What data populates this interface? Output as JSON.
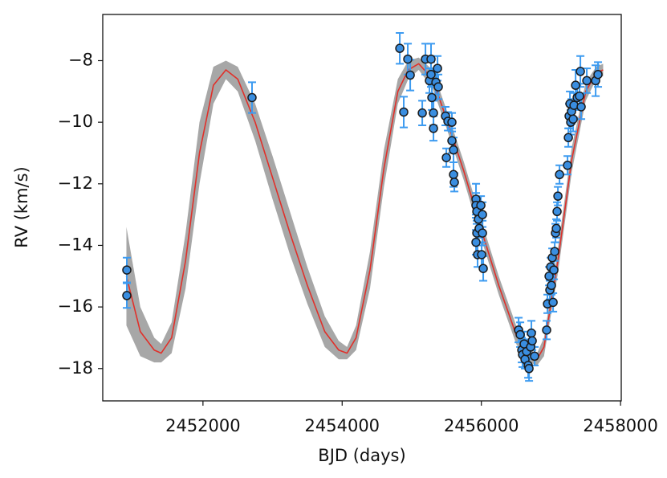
{
  "chart_data": {
    "type": "scatter",
    "xlabel": "BJD (days)",
    "ylabel": "RV (km/s)",
    "xlim": [
      2450560,
      2458010
    ],
    "ylim": [
      -19.05,
      -6.5
    ],
    "xticks": [
      2452000,
      2454000,
      2456000,
      2458000
    ],
    "yticks": [
      {
        "value": -8,
        "label": "−8"
      },
      {
        "value": -10,
        "label": "−10"
      },
      {
        "value": -12,
        "label": "−12"
      },
      {
        "value": -14,
        "label": "−14"
      },
      {
        "value": -16,
        "label": "−16"
      },
      {
        "value": -18,
        "label": "−18"
      }
    ],
    "model": {
      "color": "#e0302a",
      "band_color": "#8a8a8a",
      "x": [
        2450900,
        2451100,
        2451300,
        2451400,
        2451550,
        2451750,
        2451950,
        2452150,
        2452330,
        2452500,
        2452750,
        2453000,
        2453250,
        2453500,
        2453750,
        2453950,
        2454070,
        2454200,
        2454400,
        2454600,
        2454800,
        2454950,
        2455100,
        2455300,
        2455500,
        2455750,
        2456000,
        2456250,
        2456500,
        2456700,
        2456800,
        2456900,
        2457100,
        2457300,
        2457500,
        2457650,
        2457750
      ],
      "values": [
        -15.0,
        -16.8,
        -17.4,
        -17.5,
        -17.0,
        -14.5,
        -11.0,
        -8.8,
        -8.3,
        -8.6,
        -10.0,
        -11.8,
        -13.6,
        -15.3,
        -16.8,
        -17.4,
        -17.5,
        -17.0,
        -14.8,
        -11.5,
        -9.0,
        -8.3,
        -8.1,
        -8.6,
        -9.9,
        -11.6,
        -13.5,
        -15.3,
        -16.9,
        -17.6,
        -17.7,
        -17.3,
        -14.5,
        -11.2,
        -9.0,
        -8.4,
        -8.3
      ],
      "upper": [
        -13.4,
        -16.0,
        -17.0,
        -17.2,
        -16.5,
        -13.6,
        -10.0,
        -8.2,
        -8.0,
        -8.2,
        -9.4,
        -11.1,
        -12.9,
        -14.7,
        -16.3,
        -17.1,
        -17.3,
        -16.6,
        -14.2,
        -10.9,
        -8.6,
        -8.0,
        -7.9,
        -8.3,
        -9.6,
        -11.3,
        -13.2,
        -15.0,
        -16.6,
        -17.4,
        -17.5,
        -17.0,
        -14.1,
        -10.8,
        -8.7,
        -8.2,
        -8.1
      ],
      "lower": [
        -16.6,
        -17.6,
        -17.8,
        -17.8,
        -17.5,
        -15.4,
        -12.0,
        -9.4,
        -8.6,
        -9.0,
        -10.6,
        -12.5,
        -14.3,
        -15.9,
        -17.3,
        -17.7,
        -17.7,
        -17.4,
        -15.4,
        -12.1,
        -9.4,
        -8.6,
        -8.3,
        -8.9,
        -10.2,
        -11.9,
        -13.8,
        -15.6,
        -17.2,
        -17.8,
        -17.9,
        -17.6,
        -14.9,
        -11.6,
        -9.3,
        -8.6,
        -8.5
      ]
    },
    "series": [
      {
        "color": "#3a8ee0",
        "edge_color": "#1a1a1a",
        "error_color": "#3d9bf0",
        "x": [
          2450906,
          2450906,
          2452705,
          2454828,
          2454885,
          2454943,
          2454978,
          2455151,
          2455197,
          2455254,
          2455277,
          2455289,
          2455277,
          2455312,
          2455347,
          2455312,
          2455370,
          2455381,
          2455485,
          2455497,
          2455520,
          2455577,
          2455600,
          2455600,
          2455612,
          2455577,
          2455923,
          2455923,
          2455935,
          2455935,
          2455923,
          2455946,
          2455958,
          2455969,
          2455993,
          2456016,
          2456016,
          2456004,
          2456027,
          2456535,
          2456558,
          2456581,
          2456592,
          2456615,
          2456627,
          2456650,
          2456673,
          2456685,
          2456708,
          2456719,
          2456731,
          2456765,
          2456938,
          2456950,
          2456973,
          2456984,
          2456996,
          2457007,
          2457019,
          2457031,
          2457042,
          2457054,
          2457065,
          2457077,
          2457088,
          2457100,
          2457123,
          2457238,
          2457250,
          2457261,
          2457273,
          2457284,
          2457296,
          2457319,
          2457331,
          2457354,
          2457377,
          2457411,
          2457423,
          2457434,
          2457515,
          2457642,
          2457676
        ],
        "values": [
          -14.8,
          -15.63,
          -9.2,
          -7.6,
          -9.67,
          -7.95,
          -8.47,
          -9.7,
          -7.95,
          -8.65,
          -8.45,
          -9.2,
          -7.95,
          -9.7,
          -8.7,
          -10.2,
          -8.25,
          -8.85,
          -9.8,
          -11.15,
          -9.97,
          -10.6,
          -10.9,
          -11.7,
          -11.95,
          -10.0,
          -12.5,
          -12.7,
          -12.9,
          -13.6,
          -13.9,
          -14.3,
          -13.15,
          -13.45,
          -12.7,
          -13.0,
          -13.6,
          -14.3,
          -14.75,
          -16.75,
          -16.9,
          -17.4,
          -17.55,
          -17.2,
          -17.7,
          -17.45,
          -17.9,
          -18.0,
          -17.3,
          -16.85,
          -17.1,
          -17.6,
          -16.75,
          -15.9,
          -15.0,
          -15.45,
          -14.7,
          -15.3,
          -14.4,
          -15.85,
          -14.8,
          -14.2,
          -13.6,
          -13.45,
          -12.9,
          -12.4,
          -11.7,
          -11.4,
          -10.5,
          -9.8,
          -9.4,
          -10.0,
          -9.65,
          -9.9,
          -9.45,
          -8.8,
          -9.2,
          -9.15,
          -8.35,
          -9.5,
          -8.65,
          -8.65,
          -8.45
        ],
        "errors": [
          0.4,
          0.4,
          0.5,
          0.5,
          0.5,
          0.5,
          0.5,
          0.4,
          0.5,
          0.4,
          0.4,
          0.4,
          0.5,
          0.4,
          0.4,
          0.4,
          0.4,
          0.4,
          0.3,
          0.3,
          0.3,
          0.4,
          0.4,
          0.4,
          0.3,
          0.3,
          0.5,
          0.4,
          0.4,
          0.4,
          0.4,
          0.4,
          0.3,
          0.3,
          0.3,
          0.4,
          0.4,
          0.4,
          0.4,
          0.4,
          0.4,
          0.4,
          0.4,
          0.4,
          0.3,
          0.4,
          0.4,
          0.4,
          0.4,
          0.4,
          0.3,
          0.3,
          0.3,
          0.3,
          0.3,
          0.3,
          0.3,
          0.3,
          0.3,
          0.3,
          0.3,
          0.3,
          0.3,
          0.3,
          0.3,
          0.3,
          0.3,
          0.3,
          0.3,
          0.4,
          0.4,
          0.4,
          0.4,
          0.4,
          0.4,
          0.5,
          0.4,
          0.4,
          0.5,
          0.4,
          0.4,
          0.5,
          0.4
        ]
      }
    ]
  }
}
